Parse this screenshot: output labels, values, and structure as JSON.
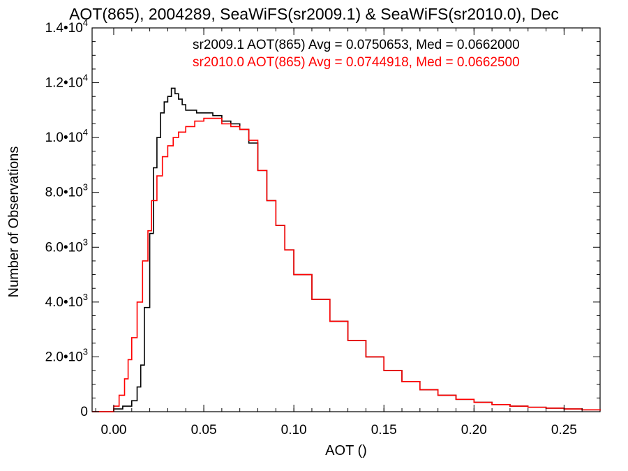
{
  "chart_data": {
    "type": "line",
    "title": "AOT(865), 2004289, SeaWiFS(sr2009.1) & SeaWiFS(sr2010.0), Dec",
    "xlabel": "AOT ()",
    "ylabel": "Number of Observations",
    "xlim": [
      -0.012,
      0.27
    ],
    "ylim": [
      0,
      14000
    ],
    "x_ticks": [
      0.0,
      0.05,
      0.1,
      0.15,
      0.2,
      0.25
    ],
    "x_tick_labels": [
      "0.00",
      "0.05",
      "0.10",
      "0.15",
      "0.20",
      "0.25"
    ],
    "y_ticks": [
      0,
      2000,
      4000,
      6000,
      8000,
      10000,
      12000,
      14000
    ],
    "y_tick_labels": [
      {
        "mantissa": "0",
        "exp": ""
      },
      {
        "mantissa": "2.0•",
        "exp": "3"
      },
      {
        "mantissa": "4.0•",
        "exp": "3"
      },
      {
        "mantissa": "6.0•",
        "exp": "3"
      },
      {
        "mantissa": "8.0•",
        "exp": "3"
      },
      {
        "mantissa": "1.0•",
        "exp": "4"
      },
      {
        "mantissa": "1.2•",
        "exp": "4"
      },
      {
        "mantissa": "1.4•",
        "exp": "4"
      }
    ],
    "grid": false,
    "legend_position": "top-right",
    "series": [
      {
        "name": "sr2009.1 AOT(865) Avg = 0.0750653, Med = 0.0662000",
        "color": "#000000",
        "x": [
          -0.012,
          -0.002,
          0.0,
          0.005,
          0.01,
          0.013,
          0.015,
          0.017,
          0.02,
          0.022,
          0.024,
          0.026,
          0.028,
          0.03,
          0.032,
          0.034,
          0.036,
          0.038,
          0.04,
          0.043,
          0.046,
          0.05,
          0.055,
          0.06,
          0.065,
          0.07,
          0.075,
          0.08,
          0.085,
          0.09,
          0.095,
          0.1,
          0.11,
          0.12,
          0.13,
          0.14,
          0.15,
          0.16,
          0.17,
          0.18,
          0.19,
          0.2,
          0.21,
          0.22,
          0.23,
          0.24,
          0.25,
          0.26,
          0.27
        ],
        "y": [
          0,
          0,
          100,
          200,
          400,
          900,
          1700,
          3800,
          6500,
          8900,
          10000,
          10900,
          11300,
          11500,
          11800,
          11600,
          11400,
          11200,
          11000,
          11000,
          10900,
          10900,
          10800,
          10600,
          10500,
          10300,
          9800,
          8800,
          7700,
          6800,
          5900,
          5000,
          4100,
          3300,
          2600,
          2000,
          1500,
          1100,
          800,
          600,
          450,
          340,
          260,
          200,
          160,
          130,
          100,
          70,
          40
        ]
      },
      {
        "name": "sr2010.0 AOT(865) Avg = 0.0744918, Med = 0.0662500",
        "color": "#ff0000",
        "x": [
          -0.012,
          -0.002,
          0.0,
          0.003,
          0.006,
          0.008,
          0.01,
          0.013,
          0.016,
          0.019,
          0.021,
          0.024,
          0.027,
          0.03,
          0.033,
          0.036,
          0.04,
          0.045,
          0.05,
          0.055,
          0.06,
          0.065,
          0.07,
          0.075,
          0.08,
          0.085,
          0.09,
          0.095,
          0.1,
          0.11,
          0.12,
          0.13,
          0.14,
          0.15,
          0.16,
          0.17,
          0.18,
          0.19,
          0.2,
          0.21,
          0.22,
          0.23,
          0.24,
          0.25,
          0.26,
          0.27
        ],
        "y": [
          0,
          0,
          200,
          600,
          1200,
          1900,
          2700,
          4000,
          5500,
          6600,
          7700,
          8600,
          9300,
          9700,
          10000,
          10200,
          10400,
          10600,
          10700,
          10700,
          10500,
          10400,
          10300,
          9900,
          8800,
          7700,
          6800,
          5900,
          5000,
          4100,
          3300,
          2600,
          2000,
          1500,
          1100,
          800,
          600,
          450,
          340,
          260,
          200,
          160,
          130,
          100,
          70,
          40
        ]
      }
    ]
  }
}
